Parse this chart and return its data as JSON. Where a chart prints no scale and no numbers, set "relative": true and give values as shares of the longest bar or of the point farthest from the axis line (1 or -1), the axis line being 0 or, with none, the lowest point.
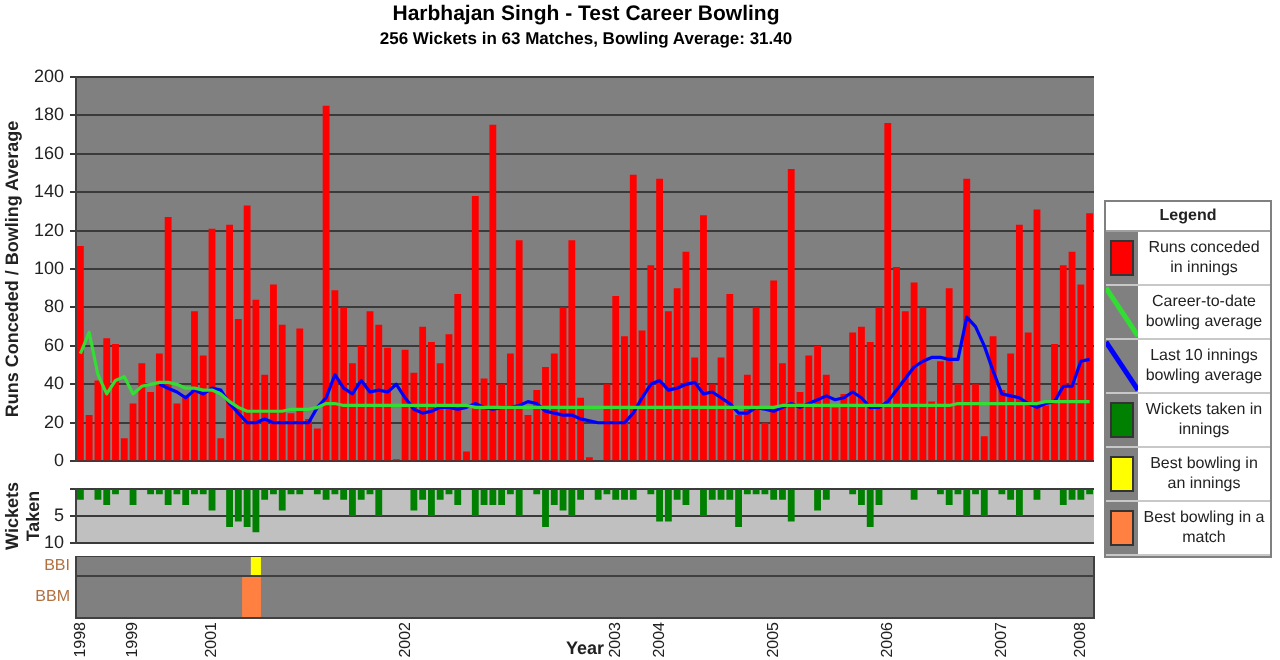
{
  "chart_data": [
    {
      "type": "bar",
      "title": "Harbhajan Singh - Test Career Bowling",
      "subtitle": "256 Wickets in 63 Matches, Bowling Average: 31.40",
      "ylabel": "Runs Conceded / Bowling Average",
      "legend_title": "Legend",
      "legend": "right",
      "grid": "y",
      "tick_labels": "y",
      "marker": "none",
      "categories": [
        "1998",
        null,
        null,
        null,
        null,
        null,
        "1999",
        null,
        null,
        null,
        null,
        null,
        null,
        null,
        null,
        "2001",
        null,
        null,
        null,
        null,
        null,
        null,
        null,
        null,
        null,
        null,
        null,
        null,
        null,
        null,
        null,
        null,
        null,
        null,
        null,
        null,
        null,
        "2002",
        null,
        null,
        null,
        null,
        null,
        null,
        null,
        null,
        null,
        null,
        null,
        null,
        null,
        null,
        null,
        null,
        null,
        null,
        null,
        null,
        null,
        null,
        null,
        "2003",
        null,
        null,
        null,
        null,
        "2004",
        null,
        null,
        null,
        null,
        null,
        null,
        null,
        null,
        null,
        null,
        null,
        null,
        "2005",
        null,
        null,
        null,
        null,
        null,
        null,
        null,
        null,
        null,
        null,
        null,
        null,
        "2006",
        null,
        null,
        null,
        null,
        null,
        null,
        null,
        null,
        null,
        null,
        null,
        null,
        "2007",
        null,
        null,
        null,
        null,
        null,
        null,
        null,
        null,
        "2008",
        null
      ],
      "ylim": [
        0,
        200
      ],
      "yticks": [
        0,
        20,
        40,
        60,
        80,
        100,
        120,
        140,
        160,
        180,
        200
      ],
      "series": [
        {
          "name": "Runs conceded in innings",
          "type": "bar",
          "color": "#ff0000",
          "values": [
            112,
            24,
            42,
            64,
            61,
            12,
            30,
            51,
            36,
            56,
            127,
            30,
            34,
            78,
            55,
            121,
            12,
            123,
            74,
            133,
            84,
            45,
            92,
            71,
            25,
            69,
            22,
            17,
            185,
            89,
            80,
            51,
            60,
            78,
            71,
            59,
            1,
            58,
            46,
            70,
            62,
            51,
            66,
            87,
            5,
            138,
            43,
            175,
            40,
            56,
            115,
            24,
            37,
            49,
            56,
            80,
            115,
            33,
            2,
            0,
            40,
            86,
            65,
            149,
            68,
            102,
            147,
            78,
            90,
            109,
            54,
            128,
            40,
            54,
            87,
            24,
            45,
            80,
            20,
            94,
            51,
            152,
            36,
            55,
            60,
            45,
            28,
            35,
            67,
            70,
            62,
            80,
            176,
            101,
            78,
            93,
            80,
            31,
            52,
            90,
            40,
            147,
            40,
            13,
            65,
            37,
            56,
            123,
            67,
            131,
            29,
            61,
            102,
            109,
            92,
            129
          ]
        },
        {
          "name": "Career-to-date bowling average",
          "type": "line",
          "color": "#33dd33",
          "values": [
            56,
            67,
            45,
            35,
            42,
            44,
            35,
            39,
            40,
            41,
            41,
            40,
            38,
            38,
            37,
            37,
            35,
            31,
            28,
            26,
            26,
            26,
            26,
            26,
            27,
            27,
            27,
            28,
            30,
            30,
            29,
            29,
            29,
            29,
            29,
            29,
            29,
            29,
            29,
            29,
            29,
            29,
            29,
            29,
            29,
            28,
            28,
            28,
            28,
            28,
            28,
            28,
            28,
            28,
            28,
            28,
            28,
            28,
            28,
            28,
            28,
            28,
            28,
            28,
            28,
            28,
            28,
            28,
            28,
            28,
            28,
            28,
            28,
            28,
            28,
            28,
            28,
            28,
            28,
            28,
            29,
            29,
            29,
            29,
            29,
            29,
            29,
            29,
            29,
            29,
            29,
            29,
            29,
            29,
            29,
            29,
            29,
            29,
            29,
            29,
            30,
            30,
            30,
            30,
            30,
            30,
            30,
            30,
            30,
            30,
            31,
            31,
            31,
            31,
            31,
            31
          ]
        },
        {
          "name": "Last 10 innings bowling average",
          "type": "line",
          "color": "#0000ff",
          "values": [
            null,
            null,
            null,
            null,
            null,
            null,
            null,
            null,
            null,
            40,
            38,
            36,
            33,
            37,
            35,
            38,
            37,
            30,
            25,
            20,
            20,
            22,
            20,
            20,
            20,
            20,
            20,
            28,
            33,
            45,
            38,
            35,
            42,
            36,
            37,
            36,
            40,
            33,
            27,
            25,
            26,
            28,
            28,
            27,
            28,
            30,
            28,
            27,
            28,
            28,
            29,
            31,
            30,
            26,
            25,
            24,
            24,
            22,
            21,
            20,
            20,
            20,
            20,
            25,
            33,
            40,
            42,
            37,
            38,
            40,
            41,
            35,
            36,
            33,
            30,
            25,
            25,
            28,
            27,
            26,
            28,
            30,
            28,
            30,
            32,
            34,
            32,
            33,
            36,
            33,
            28,
            28,
            31,
            37,
            43,
            49,
            52,
            54,
            54,
            53,
            53,
            75,
            70,
            60,
            47,
            35,
            34,
            33,
            30,
            28,
            30,
            31,
            39,
            39,
            52,
            53
          ]
        }
      ]
    },
    {
      "type": "bar",
      "ylabel": "Wickets Taken",
      "legend": "right",
      "grid": "y",
      "tick_labels": "y",
      "categories": [
        "1998",
        null,
        null,
        null,
        null,
        null,
        "1999",
        null,
        null,
        null,
        null,
        null,
        null,
        null,
        null,
        "2001",
        null,
        null,
        null,
        null,
        null,
        null,
        null,
        null,
        null,
        null,
        null,
        null,
        null,
        null,
        null,
        null,
        null,
        null,
        null,
        null,
        null,
        "2002",
        null,
        null,
        null,
        null,
        null,
        null,
        null,
        null,
        null,
        null,
        null,
        null,
        null,
        null,
        null,
        null,
        null,
        null,
        null,
        null,
        null,
        null,
        null,
        "2003",
        null,
        null,
        null,
        null,
        "2004",
        null,
        null,
        null,
        null,
        null,
        null,
        null,
        null,
        null,
        null,
        null,
        null,
        "2005",
        null,
        null,
        null,
        null,
        null,
        null,
        null,
        null,
        null,
        null,
        null,
        null,
        "2006",
        null,
        null,
        null,
        null,
        null,
        null,
        null,
        null,
        null,
        null,
        null,
        null,
        "2007",
        null,
        null,
        null,
        null,
        null,
        null,
        null,
        null,
        "2008",
        null
      ],
      "ylim": [
        10,
        0
      ],
      "yticks": [
        {
          "value": 0,
          "label": null
        },
        5,
        10
      ],
      "series": [
        {
          "name": "Wickets taken in innings",
          "color": "#008000",
          "values": [
            2,
            0,
            2,
            3,
            1,
            0,
            3,
            0,
            1,
            1,
            3,
            1,
            3,
            1,
            1,
            4,
            0,
            7,
            6,
            7,
            8,
            2,
            1,
            4,
            1,
            1,
            0,
            1,
            2,
            1,
            2,
            5,
            2,
            1,
            5,
            0,
            0,
            0,
            4,
            2,
            5,
            2,
            1,
            3,
            0,
            5,
            3,
            3,
            3,
            1,
            5,
            0,
            1,
            7,
            3,
            4,
            5,
            2,
            0,
            2,
            1,
            2,
            2,
            2,
            0,
            1,
            6,
            6,
            2,
            3,
            0,
            5,
            2,
            2,
            2,
            7,
            1,
            1,
            1,
            2,
            2,
            6,
            0,
            0,
            4,
            2,
            0,
            0,
            1,
            3,
            7,
            3,
            0,
            0,
            0,
            2,
            0,
            0,
            1,
            3,
            1,
            5,
            1,
            5,
            0,
            1,
            2,
            5,
            0,
            2,
            0,
            0,
            3,
            2,
            2,
            1
          ]
        }
      ]
    },
    {
      "type": "bar",
      "relative": true,
      "ylabel": "BBI",
      "legend": "right",
      "tick_labels": false,
      "categories": [
        "1998",
        null,
        null,
        null,
        null,
        null,
        "1999",
        null,
        null,
        null,
        null,
        null,
        null,
        null,
        null,
        "2001",
        null,
        null,
        null,
        null,
        null,
        null,
        null,
        null,
        null,
        null,
        null,
        null,
        null,
        null,
        null,
        null,
        null,
        null,
        null,
        null,
        null,
        "2002",
        null,
        null,
        null,
        null,
        null,
        null,
        null,
        null,
        null,
        null,
        null,
        null,
        null,
        null,
        null,
        null,
        null,
        null,
        null,
        null,
        null,
        null,
        null,
        "2003",
        null,
        null,
        null,
        null,
        "2004",
        null,
        null,
        null,
        null,
        null,
        null,
        null,
        null,
        null,
        null,
        null,
        null,
        "2005",
        null,
        null,
        null,
        null,
        null,
        null,
        null,
        null,
        null,
        null,
        null,
        null,
        "2006",
        null,
        null,
        null,
        null,
        null,
        null,
        null,
        null,
        null,
        null,
        null,
        null,
        "2007",
        null,
        null,
        null,
        null,
        null,
        null,
        null,
        null,
        "2008",
        null
      ],
      "series": [
        {
          "name": "Best bowling in an innings",
          "color": "#ffff00",
          "values": [
            null,
            null,
            null,
            null,
            null,
            null,
            null,
            null,
            null,
            null,
            null,
            null,
            null,
            null,
            null,
            null,
            null,
            null,
            null,
            null,
            1,
            null,
            null,
            null,
            null,
            null,
            null,
            null,
            null,
            null,
            null,
            null,
            null,
            null,
            null,
            null,
            null,
            null,
            null,
            null,
            null,
            null,
            null,
            null,
            null,
            null,
            null,
            null,
            null,
            null,
            null,
            null,
            null,
            null,
            null,
            null,
            null,
            null,
            null,
            null,
            null,
            null,
            null,
            null,
            null,
            null,
            null,
            null,
            null,
            null,
            null,
            null,
            null,
            null,
            null,
            null,
            null,
            null,
            null,
            null,
            null,
            null,
            null,
            null,
            null,
            null,
            null,
            null,
            null,
            null,
            null,
            null,
            null,
            null,
            null,
            null,
            null,
            null,
            null,
            null,
            null,
            null,
            null,
            null,
            null,
            null,
            null,
            null,
            null,
            null,
            null,
            null,
            null,
            null,
            null,
            null
          ]
        }
      ]
    },
    {
      "type": "bar",
      "relative": true,
      "ylabel": "BBM",
      "xlabel": "Year",
      "legend": "right",
      "tick_labels": "x",
      "categories": [
        "1998",
        null,
        null,
        null,
        null,
        null,
        "1999",
        null,
        null,
        null,
        null,
        null,
        null,
        null,
        null,
        "2001",
        null,
        null,
        null,
        null,
        null,
        null,
        null,
        null,
        null,
        null,
        null,
        null,
        null,
        null,
        null,
        null,
        null,
        null,
        null,
        null,
        null,
        "2002",
        null,
        null,
        null,
        null,
        null,
        null,
        null,
        null,
        null,
        null,
        null,
        null,
        null,
        null,
        null,
        null,
        null,
        null,
        null,
        null,
        null,
        null,
        null,
        "2003",
        null,
        null,
        null,
        null,
        "2004",
        null,
        null,
        null,
        null,
        null,
        null,
        null,
        null,
        null,
        null,
        null,
        null,
        "2005",
        null,
        null,
        null,
        null,
        null,
        null,
        null,
        null,
        null,
        null,
        null,
        null,
        "2006",
        null,
        null,
        null,
        null,
        null,
        null,
        null,
        null,
        null,
        null,
        null,
        null,
        "2007",
        null,
        null,
        null,
        null,
        null,
        null,
        null,
        null,
        "2008",
        null
      ],
      "series": [
        {
          "name": "Best bowling in a match",
          "color": "#ff8040",
          "values": [
            null,
            null,
            null,
            null,
            null,
            null,
            null,
            null,
            null,
            null,
            null,
            null,
            null,
            null,
            null,
            null,
            null,
            null,
            null,
            1,
            1,
            null,
            null,
            null,
            null,
            null,
            null,
            null,
            null,
            null,
            null,
            null,
            null,
            null,
            null,
            null,
            null,
            null,
            null,
            null,
            null,
            null,
            null,
            null,
            null,
            null,
            null,
            null,
            null,
            null,
            null,
            null,
            null,
            null,
            null,
            null,
            null,
            null,
            null,
            null,
            null,
            null,
            null,
            null,
            null,
            null,
            null,
            null,
            null,
            null,
            null,
            null,
            null,
            null,
            null,
            null,
            null,
            null,
            null,
            null,
            null,
            null,
            null,
            null,
            null,
            null,
            null,
            null,
            null,
            null,
            null,
            null,
            null,
            null,
            null,
            null,
            null,
            null,
            null,
            null,
            null,
            null,
            null,
            null,
            null,
            null,
            null,
            null,
            null,
            null,
            null,
            null,
            null,
            null,
            null,
            null
          ]
        }
      ]
    }
  ]
}
